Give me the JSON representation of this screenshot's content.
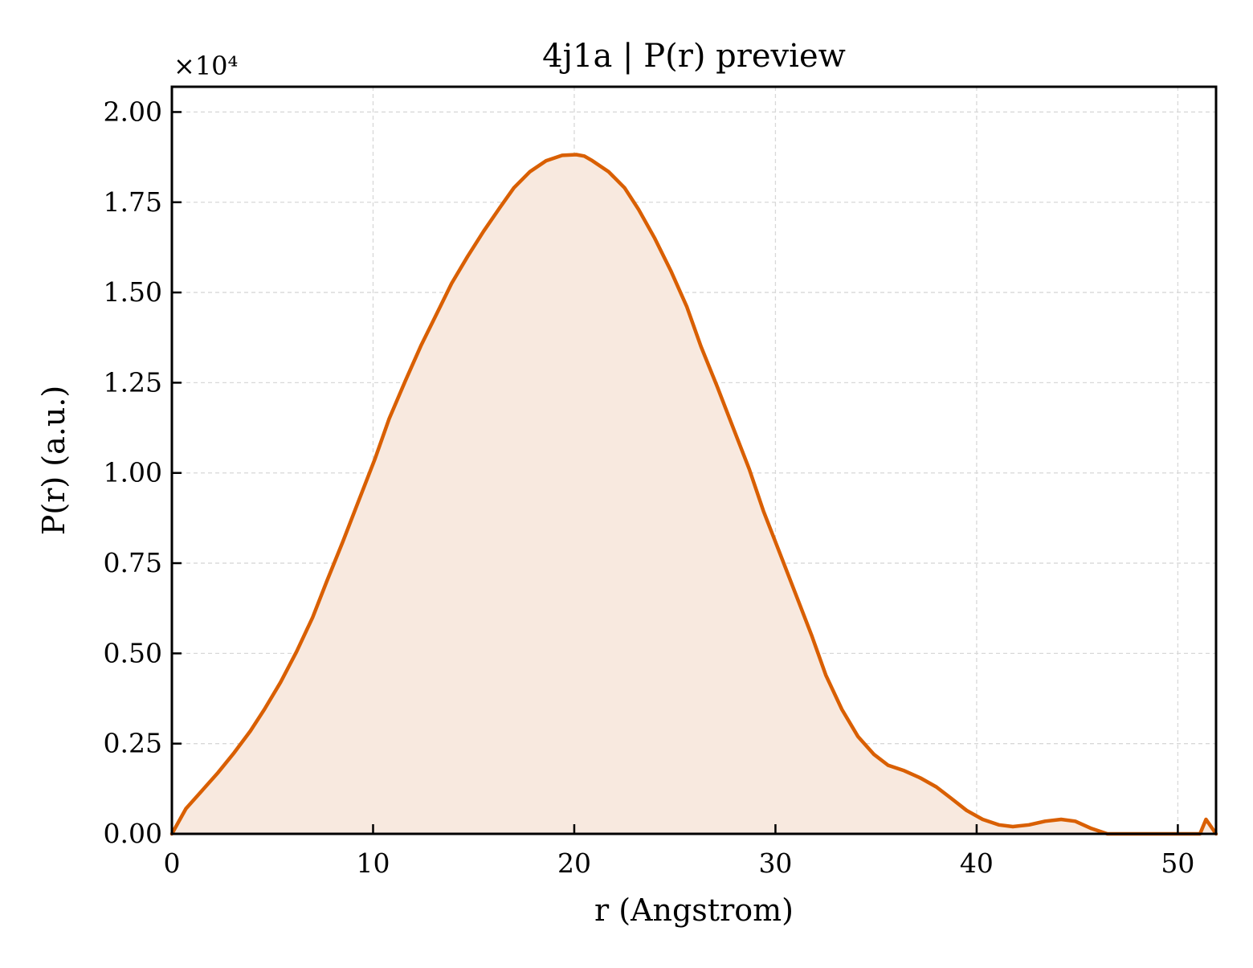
{
  "chart_data": {
    "type": "area",
    "title": "4j1a | P(r) preview",
    "xlabel": "r (Angstrom)",
    "ylabel": "P(r) (a.u.)",
    "y_offset_label": "×10⁴",
    "y_scale_factor": 10000,
    "xlim": [
      0,
      51.9
    ],
    "ylim": [
      0,
      2.07
    ],
    "x_ticks": [
      0,
      10,
      20,
      30,
      40,
      50
    ],
    "x_tick_labels": [
      "0",
      "10",
      "20",
      "30",
      "40",
      "50"
    ],
    "y_ticks": [
      0,
      0.25,
      0.5,
      0.75,
      1.0,
      1.25,
      1.5,
      1.75,
      2.0
    ],
    "y_tick_labels": [
      "0.00",
      "0.25",
      "0.50",
      "0.75",
      "1.00",
      "1.25",
      "1.50",
      "1.75",
      "2.00"
    ],
    "grid": true,
    "legend": "none",
    "colors": {
      "line": "#d95f02",
      "fill": "#f8e9df",
      "grid": "#d8d8d8",
      "axes": "#000000"
    },
    "series": [
      {
        "x": [
          0,
          0.7,
          1.5,
          2.3,
          3.1,
          3.9,
          4.6,
          5.4,
          6.2,
          7.0,
          7.7,
          8.5,
          9.3,
          10.1,
          10.8,
          11.6,
          12.4,
          13.2,
          13.9,
          14.7,
          15.5,
          16.3,
          17.0,
          17.8,
          18.6,
          19.4,
          20.1,
          20.5,
          20.9,
          21.7,
          22.5,
          23.2,
          24.0,
          24.8,
          25.6,
          26.3,
          27.1,
          27.9,
          28.7,
          29.4,
          30.2,
          31.0,
          31.8,
          32.5,
          33.3,
          34.1,
          34.9,
          35.6,
          36.4,
          37.2,
          38.0,
          38.7,
          39.5,
          40.3,
          41.1,
          41.8,
          42.6,
          43.4,
          44.2,
          44.9,
          45.7,
          46.5,
          47.3,
          48.0,
          48.4,
          48.6,
          49.0,
          49.8,
          50.6,
          51.1,
          51.4,
          51.9
        ],
        "y": [
          0.0,
          0.07,
          0.12,
          0.17,
          0.225,
          0.285,
          0.345,
          0.42,
          0.505,
          0.6,
          0.7,
          0.81,
          0.925,
          1.04,
          1.15,
          1.255,
          1.355,
          1.445,
          1.525,
          1.6,
          1.67,
          1.735,
          1.79,
          1.835,
          1.865,
          1.88,
          1.882,
          1.878,
          1.865,
          1.835,
          1.79,
          1.73,
          1.65,
          1.56,
          1.46,
          1.35,
          1.24,
          1.125,
          1.01,
          0.895,
          0.78,
          0.665,
          0.55,
          0.44,
          0.345,
          0.27,
          0.22,
          0.19,
          0.175,
          0.155,
          0.13,
          0.1,
          0.065,
          0.04,
          0.025,
          0.02,
          0.025,
          0.035,
          0.04,
          0.035,
          0.015,
          0.0,
          0.0,
          0.0,
          0.0,
          0.0,
          0.0,
          0.0,
          0.0,
          0.0,
          0.04,
          0.0
        ]
      }
    ]
  }
}
